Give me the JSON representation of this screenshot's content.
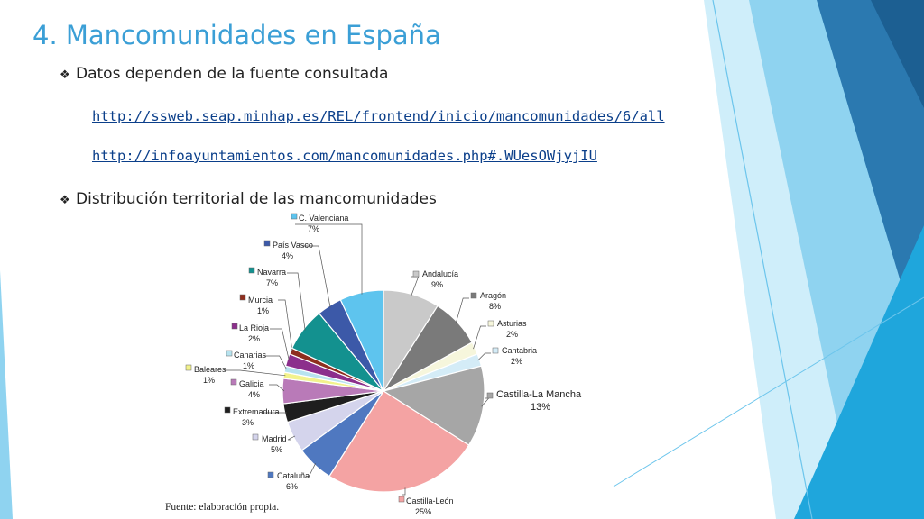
{
  "slide": {
    "title": "4. Mancomunidades en España",
    "bullets": [
      {
        "text": "Datos dependen de la fuente consultada"
      },
      {
        "text": "Distribución territorial de las mancomunidades"
      }
    ],
    "links": [
      "http://ssweb.seap.minhap.es/REL/frontend/inicio/mancomunidades/6/all",
      "http://infoayuntamientos.com/mancomunidades.php#.WUesOWjyjIU"
    ],
    "source": "Fuente: elaboración propia.",
    "bullet_icon": "diamond-bullet-icon"
  },
  "chart_data": {
    "type": "pie",
    "slices": [
      {
        "label": "Andalucía",
        "value": 9,
        "pct_label": "9%",
        "color": "#c9c9c9"
      },
      {
        "label": "Aragón",
        "value": 8,
        "pct_label": "8%",
        "color": "#7a7a7a"
      },
      {
        "label": "Asturias",
        "value": 2,
        "pct_label": "2%",
        "color": "#f6f6dc"
      },
      {
        "label": "Cantabria",
        "value": 2,
        "pct_label": "2%",
        "color": "#d4ecf7"
      },
      {
        "label": "Castilla-La Mancha",
        "value": 13,
        "pct_label": "13%",
        "color": "#a6a6a6"
      },
      {
        "label": "Castilla-León",
        "value": 25,
        "pct_label": "25%",
        "color": "#f4a3a3"
      },
      {
        "label": "Cataluña",
        "value": 6,
        "pct_label": "6%",
        "color": "#4f78c0"
      },
      {
        "label": "Madrid",
        "value": 5,
        "pct_label": "5%",
        "color": "#d4d4ec"
      },
      {
        "label": "Extremadura",
        "value": 3,
        "pct_label": "3%",
        "color": "#1e1e1e"
      },
      {
        "label": "Galicia",
        "value": 4,
        "pct_label": "4%",
        "color": "#b97ab8"
      },
      {
        "label": "Baleares",
        "value": 1,
        "pct_label": "1%",
        "color": "#f2f28c"
      },
      {
        "label": "Canarias",
        "value": 1,
        "pct_label": "1%",
        "color": "#b7e3ef"
      },
      {
        "label": "La Rioja",
        "value": 2,
        "pct_label": "2%",
        "color": "#8c2f8c"
      },
      {
        "label": "Murcia",
        "value": 1,
        "pct_label": "1%",
        "color": "#8e2e1e"
      },
      {
        "label": "Navarra",
        "value": 7,
        "pct_label": "7%",
        "color": "#13918f"
      },
      {
        "label": "País Vasco",
        "value": 4,
        "pct_label": "4%",
        "color": "#3c59a8"
      },
      {
        "label": "C. Valenciana",
        "value": 7,
        "pct_label": "7%",
        "color": "#5ec4ee"
      }
    ]
  },
  "colors": {
    "title": "#3b9fd6",
    "link": "#0b3f8a",
    "deco_light": "#9fd9f3",
    "deco_mid": "#4aaee0",
    "deco_dark": "#1f6fa8"
  }
}
